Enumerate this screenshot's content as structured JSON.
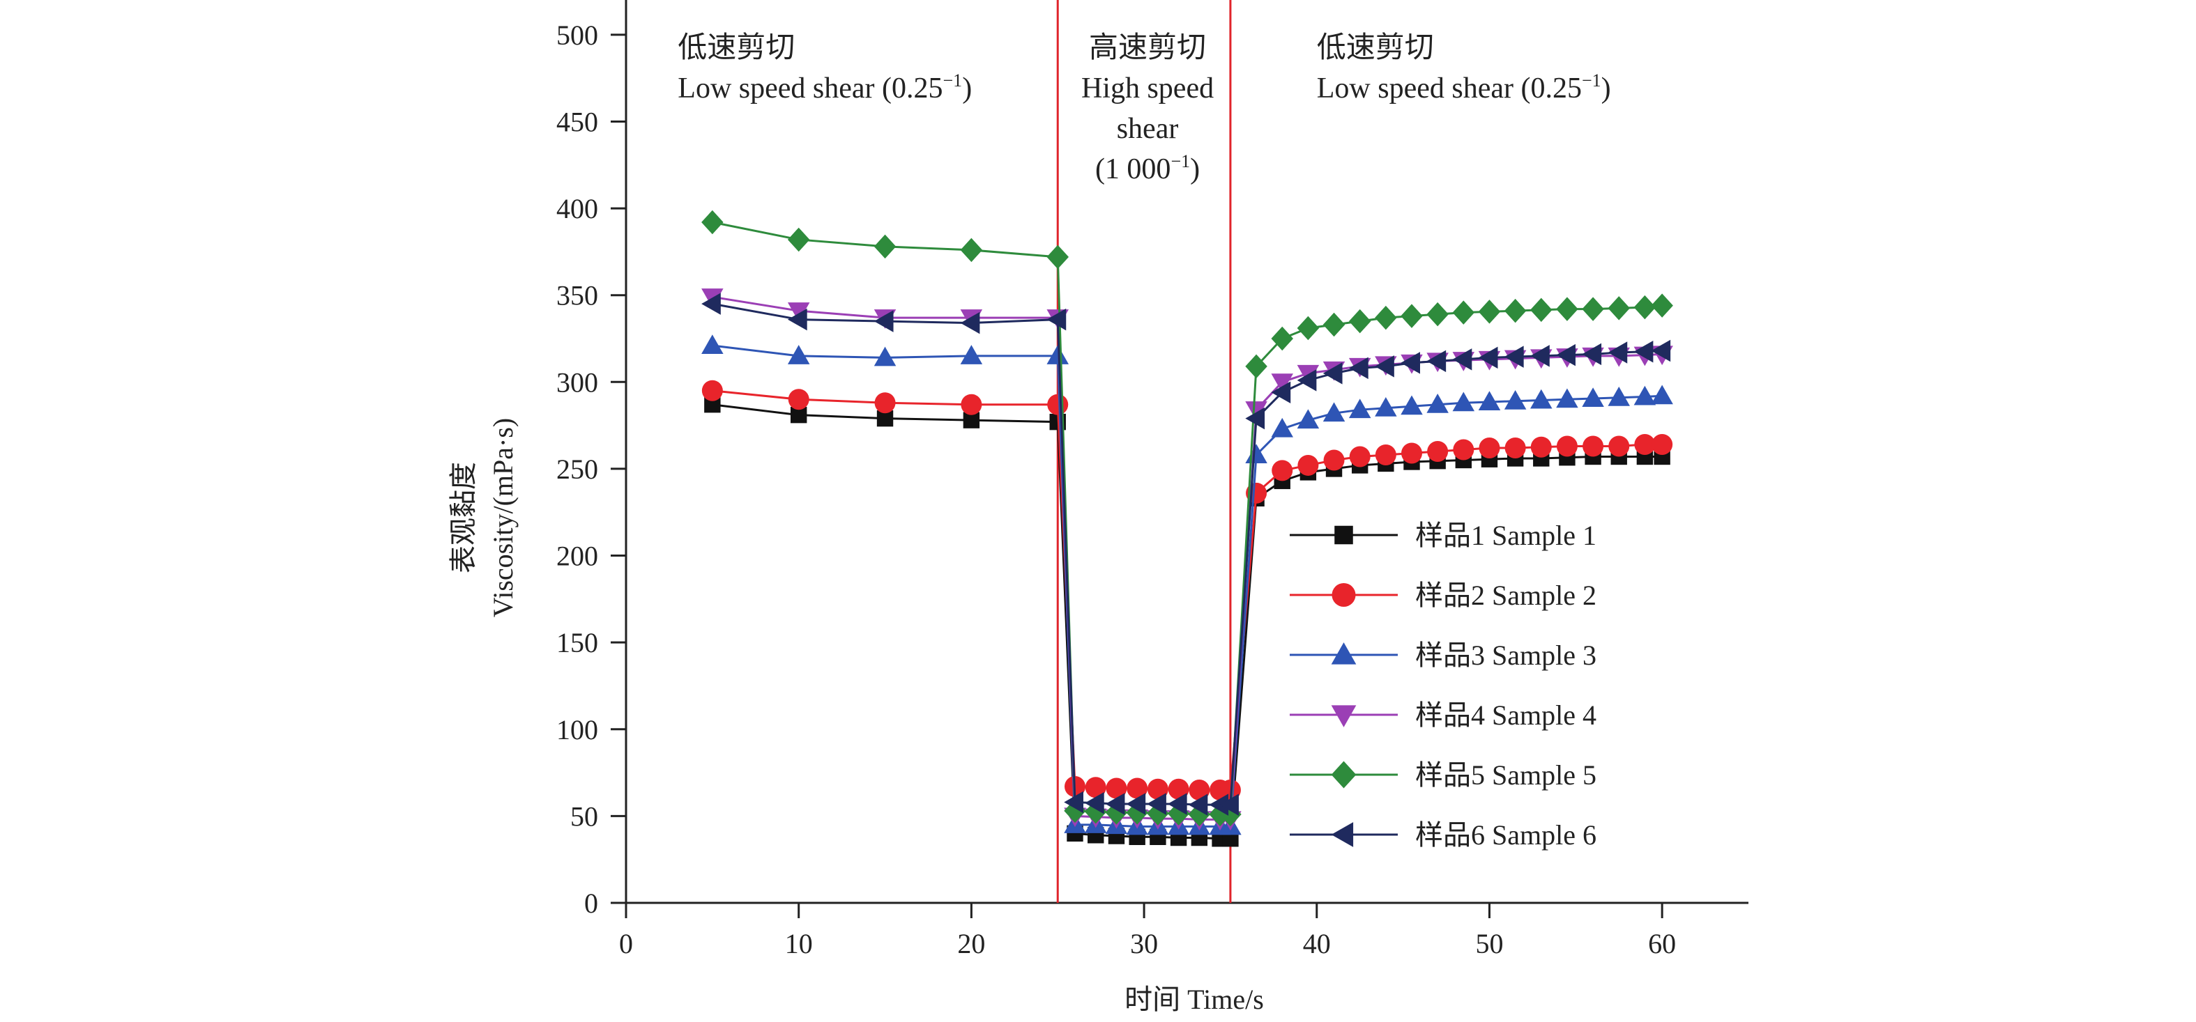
{
  "chart_data": {
    "type": "line",
    "title": "",
    "xlabel": "时间 Time/s",
    "ylabel_cn": "表观黏度",
    "ylabel_en": "Viscosity/(mPa·s)",
    "xlim": [
      0,
      65
    ],
    "ylim": [
      0,
      520
    ],
    "xticks": [
      0,
      10,
      20,
      30,
      40,
      50,
      60
    ],
    "yticks": [
      0,
      50,
      100,
      150,
      200,
      250,
      300,
      350,
      400,
      450,
      500
    ],
    "grid": false,
    "legend_position": "right-middle",
    "vlines": [
      25,
      35
    ],
    "vline_color": "#e0242b",
    "annotations": [
      {
        "id": "low1",
        "lines": [
          "低速剪切",
          "Low speed shear (0.25",
          "−1",
          ")"
        ],
        "anchor": "left",
        "x": 3,
        "y": 487
      },
      {
        "id": "high",
        "lines": [
          "高速剪切",
          "High speed",
          "shear",
          "(1 000",
          "−1",
          ")"
        ],
        "anchor": "middle",
        "x": 30.2,
        "y": 487
      },
      {
        "id": "low2",
        "lines": [
          "低速剪切",
          "Low speed shear (0.25",
          "−1",
          ")"
        ],
        "anchor": "left",
        "x": 40,
        "y": 487
      }
    ],
    "series": [
      {
        "name": "样品1 Sample 1",
        "color": "#111111",
        "marker": "square",
        "x": [
          5,
          10,
          15,
          20,
          25,
          26,
          27.2,
          28.4,
          29.6,
          30.8,
          32,
          33.2,
          34.4,
          35,
          36.5,
          38,
          39.5,
          41,
          42.5,
          44,
          45.5,
          47,
          48.5,
          50,
          51.5,
          53,
          54.5,
          56,
          57.5,
          59,
          60
        ],
        "y": [
          287,
          281,
          279,
          278,
          277,
          40,
          39,
          38.5,
          38,
          38,
          37.5,
          37.5,
          37,
          37,
          233,
          243,
          248,
          250,
          252,
          253,
          254,
          254.5,
          255,
          255.5,
          256,
          256,
          256.5,
          257,
          257,
          257,
          257
        ]
      },
      {
        "name": "样品2 Sample 2",
        "color": "#e8242b",
        "marker": "circle",
        "x": [
          5,
          10,
          15,
          20,
          25,
          26,
          27.2,
          28.4,
          29.6,
          30.8,
          32,
          33.2,
          34.4,
          35,
          36.5,
          38,
          39.5,
          41,
          42.5,
          44,
          45.5,
          47,
          48.5,
          50,
          51.5,
          53,
          54.5,
          56,
          57.5,
          59,
          60
        ],
        "y": [
          295,
          290,
          288,
          287,
          287,
          67,
          66.5,
          66,
          66,
          65.5,
          65.5,
          65,
          65,
          65,
          236,
          249,
          252,
          255,
          257,
          258,
          259,
          260,
          261,
          262,
          262,
          262.5,
          263,
          263,
          263,
          264,
          264
        ]
      },
      {
        "name": "样品3 Sample 3",
        "color": "#2e55b5",
        "marker": "triangle-up",
        "x": [
          5,
          10,
          15,
          20,
          25,
          26,
          27.2,
          28.4,
          29.6,
          30.8,
          32,
          33.2,
          34.4,
          35,
          36.5,
          38,
          39.5,
          41,
          42.5,
          44,
          45.5,
          47,
          48.5,
          50,
          51.5,
          53,
          54.5,
          56,
          57.5,
          59,
          60
        ],
        "y": [
          321,
          315,
          314,
          315,
          315,
          45,
          45,
          44.5,
          44,
          44,
          44,
          44,
          44,
          44,
          258,
          273,
          278,
          282,
          284,
          285,
          286,
          287,
          288,
          288.5,
          289,
          289.5,
          290,
          290.5,
          291,
          291.5,
          292
        ]
      },
      {
        "name": "样品4 Sample 4",
        "color": "#9b3fb5",
        "marker": "triangle-down",
        "x": [
          5,
          10,
          15,
          20,
          25,
          26,
          27.2,
          28.4,
          29.6,
          30.8,
          32,
          33.2,
          34.4,
          35,
          36.5,
          38,
          39.5,
          41,
          42.5,
          44,
          45.5,
          47,
          48.5,
          50,
          51.5,
          53,
          54.5,
          56,
          57.5,
          59,
          60
        ],
        "y": [
          349,
          341,
          337,
          337,
          337,
          50,
          49.5,
          49,
          49,
          48.5,
          48.5,
          48,
          48,
          48,
          284,
          300,
          305,
          307,
          309,
          310,
          311,
          312,
          312.5,
          313,
          313.5,
          314,
          314.5,
          315,
          315,
          315.5,
          316
        ]
      },
      {
        "name": "样品5 Sample 5",
        "color": "#2e8b3c",
        "marker": "diamond",
        "x": [
          5,
          10,
          15,
          20,
          25,
          26,
          27.2,
          28.4,
          29.6,
          30.8,
          32,
          33.2,
          34.4,
          35,
          36.5,
          38,
          39.5,
          41,
          42.5,
          44,
          45.5,
          47,
          48.5,
          50,
          51.5,
          53,
          54.5,
          56,
          57.5,
          59,
          60
        ],
        "y": [
          392,
          382,
          378,
          376,
          372,
          53,
          52.5,
          52,
          52,
          51.5,
          51.5,
          51,
          51,
          51,
          309,
          325,
          331,
          333,
          335,
          337,
          338,
          339,
          340,
          340.5,
          341,
          341.5,
          342,
          342,
          342.5,
          343,
          344
        ]
      },
      {
        "name": "样品6 Sample 6",
        "color": "#1f2a5e",
        "marker": "triangle-left",
        "x": [
          5,
          10,
          15,
          20,
          25,
          26,
          27.2,
          28.4,
          29.6,
          30.8,
          32,
          33.2,
          34.4,
          35,
          36.5,
          38,
          39.5,
          41,
          42.5,
          44,
          45.5,
          47,
          48.5,
          50,
          51.5,
          53,
          54.5,
          56,
          57.5,
          59,
          60
        ],
        "y": [
          345,
          336,
          335,
          334,
          336,
          58,
          57.5,
          57,
          57,
          57,
          57,
          56.5,
          56.5,
          56.5,
          279,
          294,
          301,
          305,
          308,
          309,
          311,
          312,
          313,
          314,
          314.5,
          315,
          315.5,
          316,
          317,
          317.5,
          318
        ]
      }
    ]
  }
}
